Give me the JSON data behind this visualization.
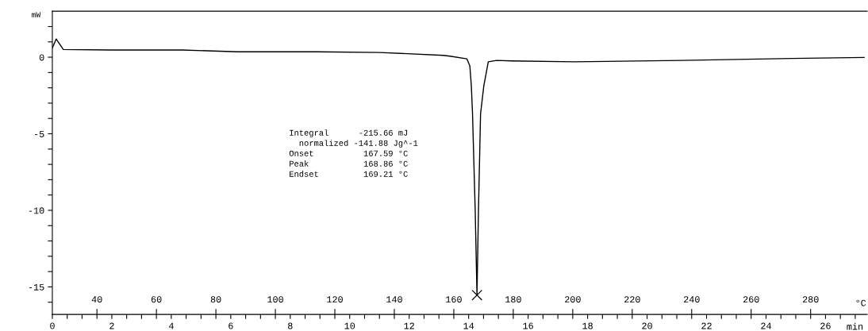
{
  "chart_data": {
    "type": "line",
    "xlabel": "min",
    "x2label": "°C",
    "ylabel": "mW",
    "xlim": [
      0,
      27.4
    ],
    "ylim": [
      -16.8,
      3
    ],
    "x2lim": [
      25,
      299
    ],
    "xticks": [
      0,
      {
        "value": 0.5,
        "label": null
      },
      {
        "value": 1,
        "label": null
      },
      {
        "value": 1.5,
        "label": null
      },
      2,
      {
        "value": 2.5,
        "label": null
      },
      {
        "value": 3,
        "label": null
      },
      {
        "value": 3.5,
        "label": null
      },
      4,
      {
        "value": 4.5,
        "label": null
      },
      {
        "value": 5,
        "label": null
      },
      {
        "value": 5.5,
        "label": null
      },
      6,
      {
        "value": 6.5,
        "label": null
      },
      {
        "value": 7,
        "label": null
      },
      {
        "value": 7.5,
        "label": null
      },
      8,
      {
        "value": 8.5,
        "label": null
      },
      {
        "value": 9,
        "label": null
      },
      {
        "value": 9.5,
        "label": null
      },
      10,
      {
        "value": 10.5,
        "label": null
      },
      {
        "value": 11,
        "label": null
      },
      {
        "value": 11.5,
        "label": null
      },
      12,
      {
        "value": 12.5,
        "label": null
      },
      {
        "value": 13,
        "label": null
      },
      {
        "value": 13.5,
        "label": null
      },
      14,
      {
        "value": 14.5,
        "label": null
      },
      {
        "value": 15,
        "label": null
      },
      {
        "value": 15.5,
        "label": null
      },
      16,
      {
        "value": 16.5,
        "label": null
      },
      {
        "value": 17,
        "label": null
      },
      {
        "value": 17.5,
        "label": null
      },
      18,
      {
        "value": 18.5,
        "label": null
      },
      {
        "value": 19,
        "label": null
      },
      {
        "value": 19.5,
        "label": null
      },
      20,
      {
        "value": 20.5,
        "label": null
      },
      {
        "value": 21,
        "label": null
      },
      {
        "value": 21.5,
        "label": null
      },
      22,
      {
        "value": 22.5,
        "label": null
      },
      {
        "value": 23,
        "label": null
      },
      {
        "value": 23.5,
        "label": null
      },
      24,
      {
        "value": 24.5,
        "label": null
      },
      {
        "value": 25,
        "label": null
      },
      {
        "value": 25.5,
        "label": null
      },
      26,
      {
        "value": 26.5,
        "label": null
      },
      {
        "value": 27,
        "label": null
      }
    ],
    "x2ticks": [
      40,
      60,
      80,
      100,
      120,
      140,
      160,
      180,
      200,
      220,
      240,
      260,
      280
    ],
    "yticks": [
      {
        "value": -16,
        "label": null
      },
      -15,
      {
        "value": -14,
        "label": null
      },
      {
        "value": -13,
        "label": null
      },
      {
        "value": -12,
        "label": null
      },
      {
        "value": -11,
        "label": null
      },
      -10,
      {
        "value": -9,
        "label": null
      },
      {
        "value": -8,
        "label": null
      },
      {
        "value": -7,
        "label": null
      },
      {
        "value": -6,
        "label": null
      },
      -5,
      {
        "value": -4,
        "label": null
      },
      {
        "value": -3,
        "label": null
      },
      {
        "value": -2,
        "label": null
      },
      {
        "value": -1,
        "label": null
      },
      0,
      {
        "value": 1,
        "label": null
      },
      {
        "value": 2,
        "label": null
      }
    ],
    "grid": false,
    "legend": false,
    "series": [
      {
        "color": "#000000",
        "x": [
          0,
          0.13,
          0.37,
          1.97,
          4.37,
          6.23,
          8.89,
          11.0,
          13.15,
          13.37,
          13.94,
          14.04,
          14.09,
          14.13,
          14.22,
          14.28,
          14.33,
          14.4,
          14.51,
          14.66,
          14.94,
          15.46,
          17.55,
          21.15,
          24.87,
          27.3
        ],
        "values": [
          0.6,
          1.19,
          0.5,
          0.47,
          0.47,
          0.35,
          0.35,
          0.31,
          0.12,
          0.07,
          -0.11,
          -0.57,
          -1.87,
          -3.7,
          -10,
          -15.54,
          -10,
          -3.7,
          -1.87,
          -0.3,
          -0.21,
          -0.24,
          -0.3,
          -0.21,
          -0.08,
          -0.02
        ]
      },
      {
        "type": "scatter",
        "marker": "cross",
        "color": "#000000",
        "x": [
          14.28
        ],
        "values": [
          -15.54
        ]
      }
    ],
    "annotations": [
      "Integral      -215.66 mJ",
      "  normalized -141.88 Jg^-1",
      "Onset          167.59 °C",
      "Peak           168.86 °C",
      "Endset         169.21 °C"
    ]
  }
}
